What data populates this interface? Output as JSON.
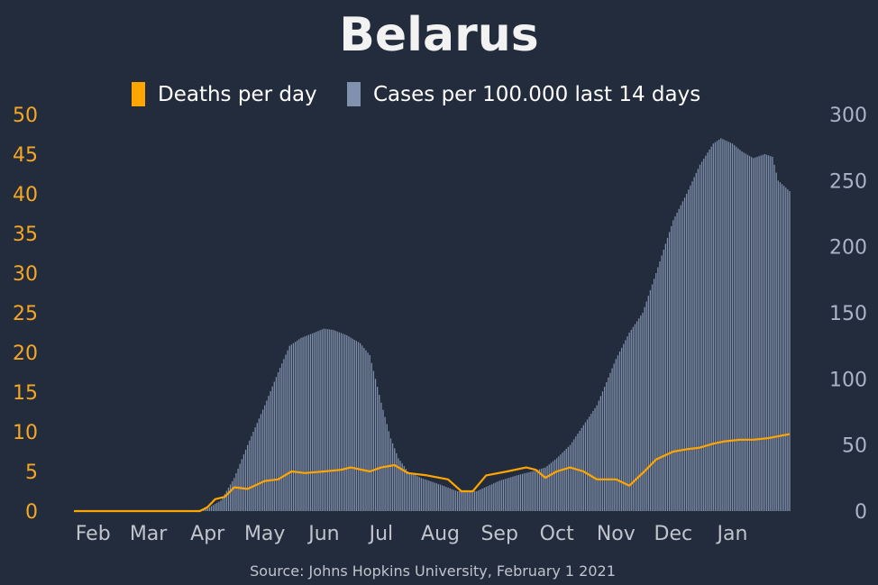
{
  "chart_data": {
    "type": "bar+line",
    "title": "Belarus",
    "source": "Source: Johns Hopkins University, February 1 2021",
    "legend": {
      "placement": "top-center",
      "entries": [
        {
          "label": "Deaths per day",
          "color": "#ffa500",
          "icon": "orange-square"
        },
        {
          "label": "Cases per 100.000 last 14 days",
          "color": "#8191ad",
          "icon": "slate-square"
        }
      ]
    },
    "x_axis": {
      "domain": [
        "2020-01-22",
        "2021-01-31"
      ],
      "ticks": [
        {
          "date": "2020-02-01",
          "label": "Feb"
        },
        {
          "date": "2020-03-01",
          "label": "Mar"
        },
        {
          "date": "2020-04-01",
          "label": "Apr"
        },
        {
          "date": "2020-05-01",
          "label": "May"
        },
        {
          "date": "2020-06-01",
          "label": "Jun"
        },
        {
          "date": "2020-07-01",
          "label": "Jul"
        },
        {
          "date": "2020-08-01",
          "label": "Aug"
        },
        {
          "date": "2020-09-01",
          "label": "Sep"
        },
        {
          "date": "2020-10-01",
          "label": "Oct"
        },
        {
          "date": "2020-11-01",
          "label": "Nov"
        },
        {
          "date": "2020-12-01",
          "label": "Dec"
        },
        {
          "date": "2021-01-01",
          "label": "Jan"
        }
      ]
    },
    "y_left": {
      "ylim": [
        0,
        50
      ],
      "ticks": [
        0,
        5,
        10,
        15,
        20,
        25,
        30,
        35,
        40,
        45,
        50
      ],
      "color": "#f5a623"
    },
    "y_right": {
      "ylim": [
        0,
        300
      ],
      "ticks": [
        0,
        50,
        100,
        150,
        200,
        250,
        300
      ],
      "color": "#aab4c8"
    },
    "colors": {
      "background": "#232c3d",
      "bars": "#8191ad",
      "line": "#ffa500",
      "title": "#f2f2f2",
      "axis_text": "#c0c4cc"
    },
    "series": [
      {
        "name": "Cases per 100.000 last 14 days",
        "axis": "right",
        "type": "bar",
        "points": [
          [
            "2020-01-22",
            0
          ],
          [
            "2020-03-25",
            0
          ],
          [
            "2020-04-01",
            2
          ],
          [
            "2020-04-08",
            8
          ],
          [
            "2020-04-15",
            25
          ],
          [
            "2020-04-22",
            50
          ],
          [
            "2020-05-01",
            80
          ],
          [
            "2020-05-08",
            105
          ],
          [
            "2020-05-14",
            125
          ],
          [
            "2020-05-20",
            131
          ],
          [
            "2020-05-27",
            135
          ],
          [
            "2020-06-01",
            138
          ],
          [
            "2020-06-06",
            137
          ],
          [
            "2020-06-13",
            133
          ],
          [
            "2020-06-20",
            127
          ],
          [
            "2020-06-25",
            118
          ],
          [
            "2020-07-01",
            82
          ],
          [
            "2020-07-06",
            55
          ],
          [
            "2020-07-10",
            40
          ],
          [
            "2020-07-15",
            30
          ],
          [
            "2020-07-22",
            25
          ],
          [
            "2020-08-01",
            20
          ],
          [
            "2020-08-10",
            15
          ],
          [
            "2020-08-20",
            15
          ],
          [
            "2020-09-01",
            23
          ],
          [
            "2020-09-10",
            27
          ],
          [
            "2020-09-18",
            30
          ],
          [
            "2020-09-25",
            33
          ],
          [
            "2020-10-01",
            40
          ],
          [
            "2020-10-08",
            50
          ],
          [
            "2020-10-15",
            65
          ],
          [
            "2020-10-22",
            80
          ],
          [
            "2020-11-01",
            115
          ],
          [
            "2020-11-08",
            135
          ],
          [
            "2020-11-15",
            150
          ],
          [
            "2020-11-22",
            180
          ],
          [
            "2020-12-01",
            220
          ],
          [
            "2020-12-08",
            240
          ],
          [
            "2020-12-15",
            262
          ],
          [
            "2020-12-22",
            278
          ],
          [
            "2020-12-26",
            282
          ],
          [
            "2021-01-01",
            278
          ],
          [
            "2021-01-06",
            272
          ],
          [
            "2021-01-12",
            267
          ],
          [
            "2021-01-18",
            270
          ],
          [
            "2021-01-22",
            268
          ],
          [
            "2021-01-25",
            250
          ],
          [
            "2021-01-31",
            242
          ]
        ]
      },
      {
        "name": "Deaths per day",
        "axis": "left",
        "type": "line",
        "points": [
          [
            "2020-01-22",
            0
          ],
          [
            "2020-03-28",
            0
          ],
          [
            "2020-04-01",
            0.5
          ],
          [
            "2020-04-05",
            1.5
          ],
          [
            "2020-04-10",
            1.8
          ],
          [
            "2020-04-15",
            3
          ],
          [
            "2020-04-22",
            2.8
          ],
          [
            "2020-05-01",
            3.8
          ],
          [
            "2020-05-08",
            4
          ],
          [
            "2020-05-15",
            5
          ],
          [
            "2020-05-22",
            4.8
          ],
          [
            "2020-06-01",
            5
          ],
          [
            "2020-06-10",
            5.2
          ],
          [
            "2020-06-15",
            5.5
          ],
          [
            "2020-06-25",
            5
          ],
          [
            "2020-07-01",
            5.5
          ],
          [
            "2020-07-08",
            5.8
          ],
          [
            "2020-07-15",
            4.8
          ],
          [
            "2020-07-25",
            4.5
          ],
          [
            "2020-08-05",
            4
          ],
          [
            "2020-08-12",
            2.5
          ],
          [
            "2020-08-18",
            2.5
          ],
          [
            "2020-08-25",
            4.5
          ],
          [
            "2020-09-05",
            5
          ],
          [
            "2020-09-15",
            5.5
          ],
          [
            "2020-09-20",
            5.2
          ],
          [
            "2020-09-25",
            4.2
          ],
          [
            "2020-10-01",
            5
          ],
          [
            "2020-10-08",
            5.5
          ],
          [
            "2020-10-15",
            5
          ],
          [
            "2020-10-22",
            4
          ],
          [
            "2020-11-01",
            4
          ],
          [
            "2020-11-08",
            3.2
          ],
          [
            "2020-11-15",
            4.8
          ],
          [
            "2020-11-22",
            6.5
          ],
          [
            "2020-12-01",
            7.5
          ],
          [
            "2020-12-08",
            7.8
          ],
          [
            "2020-12-15",
            8
          ],
          [
            "2020-12-22",
            8.5
          ],
          [
            "2020-12-28",
            8.8
          ],
          [
            "2021-01-05",
            9
          ],
          [
            "2021-01-12",
            9
          ],
          [
            "2021-01-20",
            9.2
          ],
          [
            "2021-01-31",
            9.7
          ]
        ]
      }
    ]
  }
}
